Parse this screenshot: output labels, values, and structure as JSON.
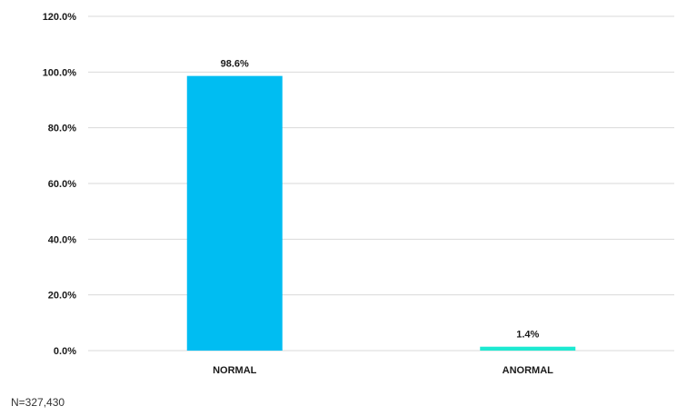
{
  "chart_data": {
    "type": "bar",
    "categories": [
      "NORMAL",
      "ANORMAL"
    ],
    "values": [
      98.6,
      1.4
    ],
    "data_labels": [
      "98.6%",
      "1.4%"
    ],
    "bar_colors": [
      "#00BDF2",
      "#1DE9D1"
    ],
    "ylim": [
      0,
      120
    ],
    "y_ticks": [
      "0.0%",
      "20.0%",
      "40.0%",
      "60.0%",
      "80.0%",
      "100.0%",
      "120.0%"
    ],
    "grid": true,
    "title": "",
    "xlabel": "",
    "ylabel": ""
  },
  "footnote": "N=327,430"
}
